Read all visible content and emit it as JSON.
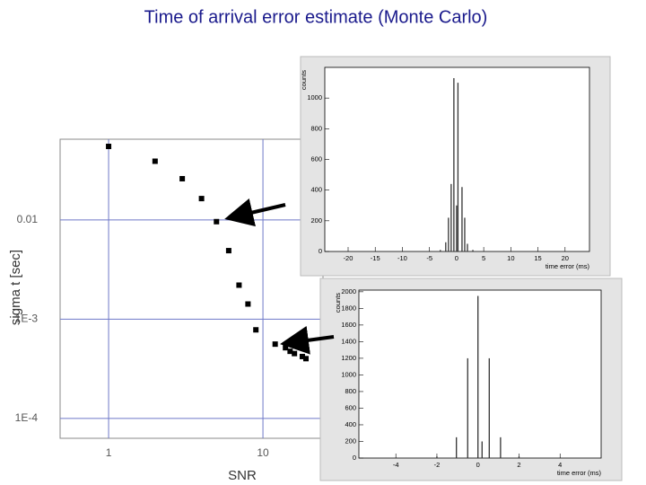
{
  "title": "Time of arrival error estimate (Monte Carlo)",
  "chart_data": [
    {
      "type": "scatter",
      "xlabel": "SNR",
      "ylabel": "sigma t [sec]",
      "x": [
        1,
        2,
        3,
        4,
        5,
        6,
        7,
        8,
        9,
        12,
        14,
        15,
        16,
        18,
        19
      ],
      "values": [
        0.055,
        0.039,
        0.026,
        0.0164,
        0.0096,
        0.0049,
        0.0022,
        0.00142,
        0.00078,
        0.00056,
        0.000515,
        0.000474,
        0.00045,
        0.00042,
        0.0004
      ],
      "color": "#000000",
      "xlog": true,
      "ylog": true,
      "xlim": [
        0.485,
        24.5
      ],
      "ylim": [
        6.3e-05,
        0.065
      ],
      "xticks": [
        1,
        10
      ],
      "yticks": [
        0.01,
        {
          "value": 0.001,
          "label": "1E-3"
        },
        {
          "value": 0.0001,
          "label": "1E-4"
        }
      ],
      "grid": true,
      "grid_color": "#6e78c8"
    },
    {
      "type": "stem",
      "xlabel": "time error (ms)",
      "ylabel": "counts",
      "x": [
        -3,
        -2,
        -1.5,
        -1,
        -0.5,
        0,
        0.25,
        1,
        1.5,
        2,
        3
      ],
      "values": [
        10,
        60,
        220,
        440,
        1130,
        300,
        1100,
        420,
        220,
        50,
        10
      ],
      "color": "#333333",
      "xlim": [
        -24.3,
        24.5
      ],
      "ylim": [
        0,
        1200
      ],
      "xticks": [
        -20,
        -15,
        -10,
        -5,
        0,
        5,
        10,
        15,
        20
      ],
      "yticks": [
        0,
        200,
        400,
        600,
        800,
        1000
      ],
      "grid": false
    },
    {
      "type": "stem",
      "xlabel": "time error (ms)",
      "ylabel": "counts",
      "x": [
        -2,
        -1.05,
        -0.5,
        0,
        0.2,
        0.55,
        1.1,
        2
      ],
      "values": [
        20,
        250,
        1200,
        1950,
        200,
        1200,
        250,
        20
      ],
      "color": "#333333",
      "xlim": [
        -5.8,
        6
      ],
      "ylim": [
        0,
        2020
      ],
      "xticks": [
        -4,
        -2,
        0,
        2,
        4
      ],
      "yticks": [
        0,
        200,
        400,
        600,
        800,
        1000,
        1200,
        1400,
        1600,
        1800,
        2000
      ],
      "grid": false
    }
  ]
}
